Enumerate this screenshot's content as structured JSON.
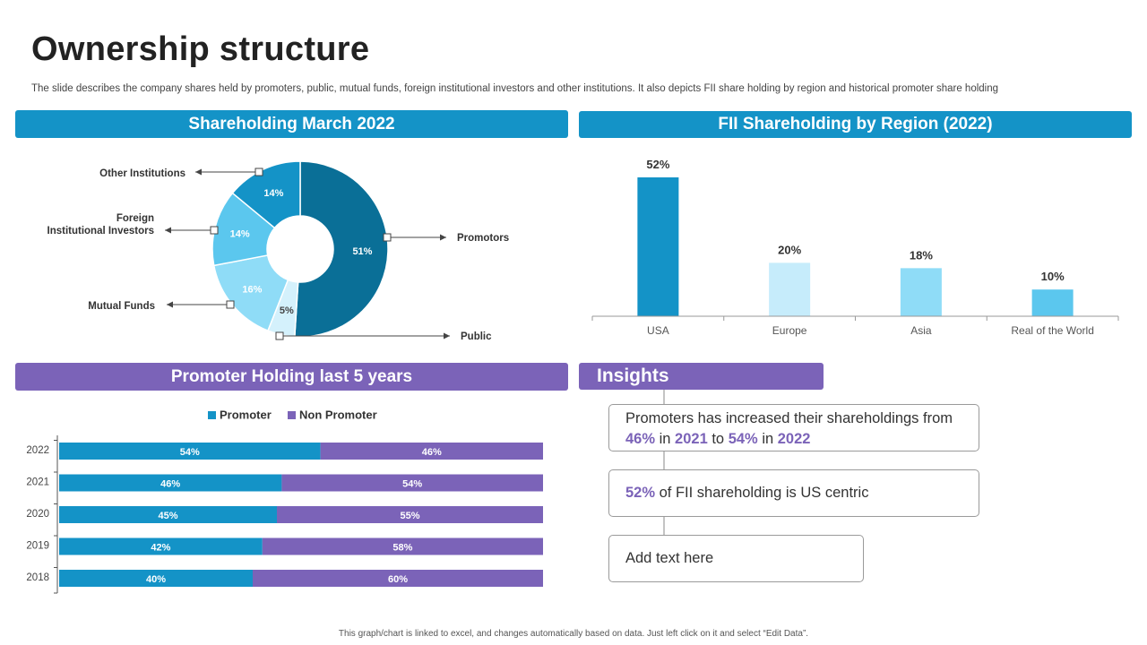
{
  "header": {
    "title": "Ownership structure",
    "subtitle": "The slide describes the company shares held by promoters, public, mutual funds, foreign institutional investors and other institutions. It also depicts FII share holding by region and historical promoter share holding"
  },
  "banners": {
    "shareholding": "Shareholding March 2022",
    "fii": "FII Shareholding by Region (2022)",
    "promoter": "Promoter Holding last 5 years",
    "insights": "Insights"
  },
  "insights": {
    "item1": {
      "t1": "Promoters has increased their shareholdings from ",
      "v1": "46%",
      "t2": " in ",
      "v2": "2021",
      "t3": " to ",
      "v3": "54%",
      "t4": " in ",
      "v4": "2022"
    },
    "item2": {
      "v1": "52%",
      "t1": " of FII shareholding is US centric"
    },
    "item3": {
      "t1": "Add text here"
    }
  },
  "footnote": "This graph/chart is linked to excel, and changes automatically based on data. Just left click on it and select “Edit Data”.",
  "colors": {
    "blue": "#1493c7",
    "purple": "#7b63b8",
    "dark_teal": "#0a6f97",
    "mid_blue": "#5bc7ee",
    "light_blue": "#8fdcf7",
    "pale_blue": "#c6ecfb"
  },
  "chart_data": [
    {
      "type": "pie",
      "variant": "donut",
      "title": "Shareholding March 2022",
      "slices": [
        {
          "label": "Promotors",
          "value": 51,
          "display": "51%",
          "color": "#0a6f97"
        },
        {
          "label": "Public",
          "value": 5,
          "display": "5%",
          "color": "#d4f1fc"
        },
        {
          "label": "Mutual Funds",
          "value": 16,
          "display": "16%",
          "color": "#8fdcf7"
        },
        {
          "label": "Foreign\nInstitutional Investors",
          "value": 14,
          "display": "14%",
          "color": "#5bc7ee"
        },
        {
          "label": "Other Institutions",
          "value": 14,
          "display": "14%",
          "color": "#1493c7"
        }
      ]
    },
    {
      "type": "bar",
      "title": "FII Shareholding by Region (2022)",
      "categories": [
        "USA",
        "Europe",
        "Asia",
        "Real of the World"
      ],
      "values": [
        52,
        20,
        18,
        10
      ],
      "labels": [
        "52%",
        "20%",
        "18%",
        "10%"
      ],
      "colors": [
        "#1493c7",
        "#c6ecfb",
        "#8fdcf7",
        "#5bc7ee"
      ],
      "ylim": [
        0,
        52
      ]
    },
    {
      "type": "bar",
      "orientation": "horizontal",
      "stacked": true,
      "percent": true,
      "title": "Promoter Holding last 5 years",
      "categories": [
        "2022",
        "2021",
        "2020",
        "2019",
        "2018"
      ],
      "series": [
        {
          "name": "Promoter",
          "values": [
            54,
            46,
            45,
            42,
            40
          ],
          "labels": [
            "54%",
            "46%",
            "45%",
            "42%",
            "40%"
          ],
          "color": "#1493c7"
        },
        {
          "name": "Non Promoter",
          "values": [
            46,
            54,
            55,
            58,
            60
          ],
          "labels": [
            "46%",
            "54%",
            "55%",
            "58%",
            "60%"
          ],
          "color": "#7b63b8"
        }
      ],
      "xlim": [
        0,
        100
      ]
    }
  ]
}
